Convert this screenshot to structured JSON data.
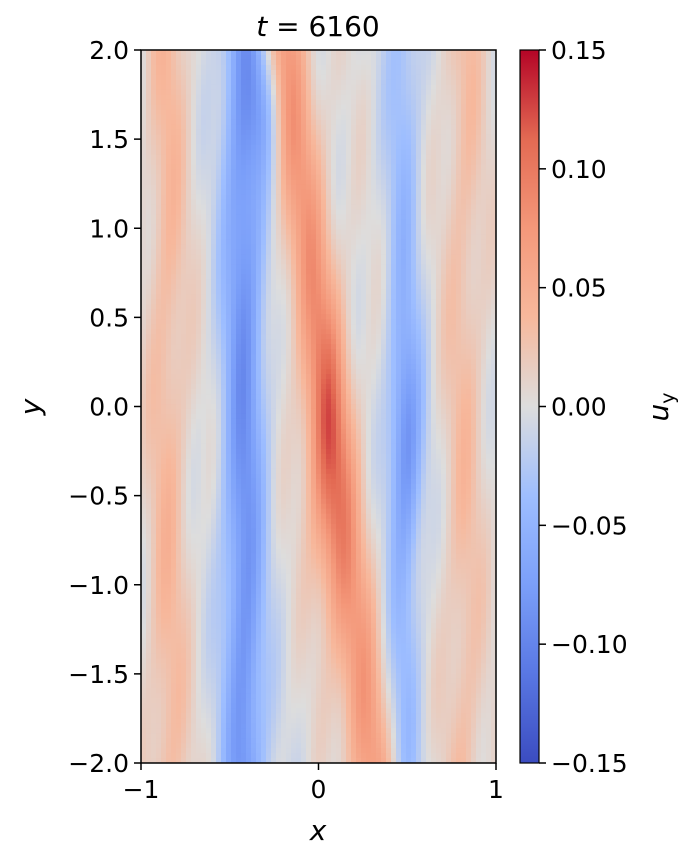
{
  "chart_data": {
    "type": "heatmap",
    "title_var": "t",
    "title_eq": " = ",
    "title_value": "6160",
    "xlabel": "x",
    "ylabel": "y",
    "xlim": [
      -1,
      1
    ],
    "ylim": [
      -2,
      2
    ],
    "x_ticks": [
      {
        "value": -1,
        "label": "−1"
      },
      {
        "value": 0,
        "label": "0"
      },
      {
        "value": 1,
        "label": "1"
      }
    ],
    "y_ticks": [
      {
        "value": 2.0,
        "label": "2.0"
      },
      {
        "value": 1.5,
        "label": "1.5"
      },
      {
        "value": 1.0,
        "label": "1.0"
      },
      {
        "value": 0.5,
        "label": "0.5"
      },
      {
        "value": 0.0,
        "label": "0.0"
      },
      {
        "value": -0.5,
        "label": "−0.5"
      },
      {
        "value": -1.0,
        "label": "−1.0"
      },
      {
        "value": -1.5,
        "label": "−1.5"
      },
      {
        "value": -2.0,
        "label": "−2.0"
      }
    ],
    "colorbar": {
      "label_base": "u",
      "label_sub": "y",
      "colormap": "coolwarm",
      "range": [
        -0.15,
        0.15
      ],
      "ticks": [
        {
          "value": 0.15,
          "label": "0.15"
        },
        {
          "value": 0.1,
          "label": "0.10"
        },
        {
          "value": 0.05,
          "label": "0.05"
        },
        {
          "value": 0.0,
          "label": "0.00"
        },
        {
          "value": -0.05,
          "label": "−0.05"
        },
        {
          "value": -0.1,
          "label": "−0.10"
        },
        {
          "value": -0.15,
          "label": "−0.15"
        }
      ]
    },
    "field_description": {
      "features": [
        {
          "kind": "band",
          "x_center": -0.85,
          "width": 0.12,
          "amplitude": 0.035
        },
        {
          "kind": "band",
          "x_center": -0.42,
          "width": 0.12,
          "amplitude": -0.085
        },
        {
          "kind": "band",
          "x_center": 0.05,
          "width": 0.14,
          "amplitude": 0.07,
          "tilt": -0.12
        },
        {
          "kind": "band",
          "x_center": 0.48,
          "width": 0.1,
          "amplitude": -0.04
        },
        {
          "kind": "band",
          "x_center": 0.82,
          "width": 0.12,
          "amplitude": 0.03
        },
        {
          "kind": "blob",
          "x": 0.05,
          "y": -0.3,
          "sx": 0.12,
          "sy": 0.8,
          "amplitude": 0.05
        },
        {
          "kind": "blob",
          "x": 0.5,
          "y": -0.2,
          "sx": 0.09,
          "sy": 0.6,
          "amplitude": -0.05
        },
        {
          "kind": "blob",
          "x": -0.3,
          "y": 1.7,
          "sx": 0.08,
          "sy": 0.4,
          "amplitude": -0.04
        }
      ]
    }
  }
}
